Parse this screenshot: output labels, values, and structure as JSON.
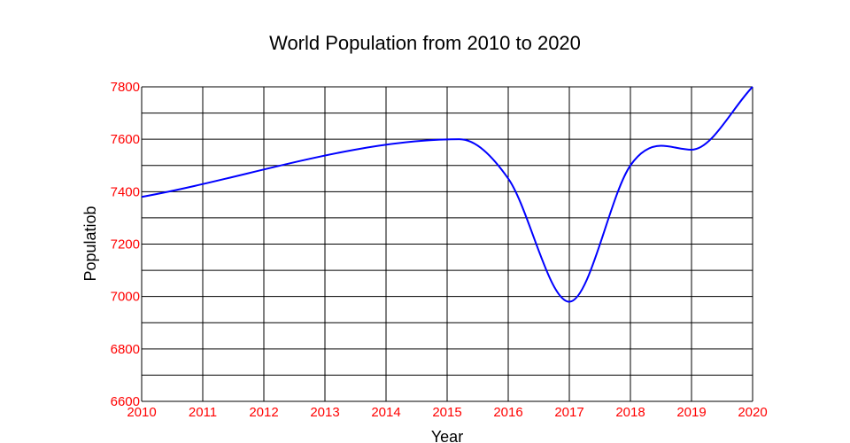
{
  "chart_data": {
    "type": "line",
    "title": "World Population from 2010 to 2020",
    "xlabel": "Year",
    "ylabel": "Populatiob",
    "xlim": [
      2010,
      2020
    ],
    "ylim": [
      6600,
      7800
    ],
    "x_ticks": [
      "2010",
      "2011",
      "2012",
      "2013",
      "2014",
      "2015",
      "2016",
      "2017",
      "2018",
      "2019",
      "2020"
    ],
    "y_ticks": [
      "6600",
      "6800",
      "7000",
      "7200",
      "7400",
      "7600",
      "7800"
    ],
    "grid": true,
    "tick_color": "#ff0000",
    "grid_color": "#000000",
    "series": [
      {
        "color": "#0000ff",
        "x": [
          2010,
          2015.2,
          2016,
          2017,
          2018,
          2018.5,
          2019,
          2020
        ],
        "y": [
          7380,
          7600,
          7450,
          6980,
          7500,
          7575,
          7560,
          7800
        ]
      }
    ]
  }
}
